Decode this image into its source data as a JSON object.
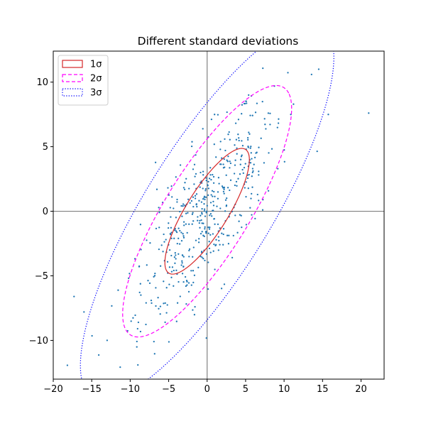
{
  "chart_data": {
    "type": "scatter",
    "title": "Different standard deviations",
    "xlabel": "",
    "ylabel": "",
    "xlim": [
      -20,
      23
    ],
    "ylim": [
      -13,
      12.4
    ],
    "xticks": [
      -20,
      -15,
      -10,
      -5,
      0,
      5,
      10,
      15,
      20
    ],
    "yticks": [
      -10,
      -5,
      0,
      5,
      10
    ],
    "xtick_labels": [
      "−20",
      "−15",
      "−10",
      "−5",
      "0",
      "5",
      "10",
      "15",
      "20"
    ],
    "ytick_labels": [
      "−10",
      "−5",
      "0",
      "5",
      "10"
    ],
    "grid": false,
    "axis_lines": {
      "x": 0,
      "y": 0,
      "color": "#808080"
    },
    "legend": {
      "placement": "top-left",
      "entries": [
        {
          "label": "1σ",
          "color": "#d62728",
          "style": "solid"
        },
        {
          "label": "2σ",
          "color": "#ff00ff",
          "style": "dashed"
        },
        {
          "label": "3σ",
          "color": "#0000ff",
          "style": "dotted"
        }
      ]
    },
    "scatter": {
      "color": "#1f77b4",
      "count": 500,
      "mean": [
        0.0,
        0.0
      ],
      "corr_axes_deg": 40,
      "major_sd": 6.2,
      "minor_sd": 2.2,
      "points_highlight": [
        [
          21.0,
          7.6
        ],
        [
          14.5,
          11.0
        ],
        [
          -9.0,
          -11.9
        ],
        [
          -13.0,
          -10.0
        ],
        [
          -17.3,
          -6.6
        ],
        [
          -16.0,
          -7.8
        ]
      ]
    },
    "ellipses": [
      {
        "name": "1σ",
        "center": [
          0,
          0
        ],
        "angle_deg": 40.8,
        "semi_major": 7.0,
        "semi_minor": 2.2,
        "color": "#d62728",
        "style": "solid"
      },
      {
        "name": "2σ",
        "center": [
          0,
          0
        ],
        "angle_deg": 40.8,
        "semi_major": 14.0,
        "semi_minor": 4.4,
        "color": "#ff00ff",
        "style": "dashed"
      },
      {
        "name": "3σ",
        "center": [
          0,
          0
        ],
        "angle_deg": 40.8,
        "semi_major": 21.0,
        "semi_minor": 6.6,
        "color": "#0000ff",
        "style": "dotted"
      }
    ]
  }
}
